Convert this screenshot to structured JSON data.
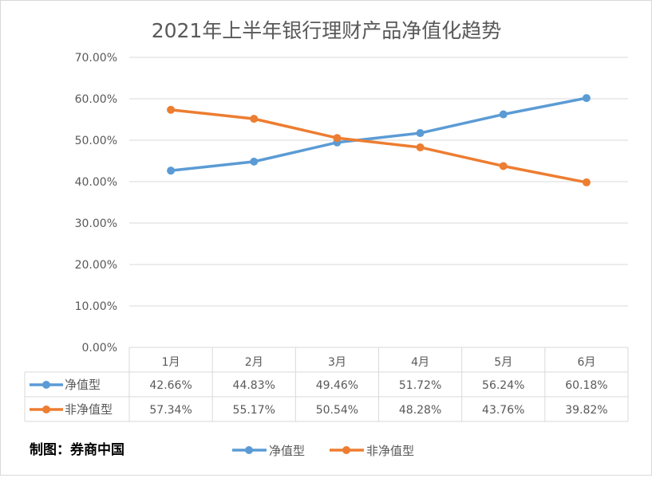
{
  "chart_data": {
    "type": "line",
    "title": "2021年上半年银行理财产品净值化趋势",
    "categories": [
      "1月",
      "2月",
      "3月",
      "4月",
      "5月",
      "6月"
    ],
    "series": [
      {
        "name": "净值型",
        "values": [
          42.66,
          44.83,
          49.46,
          51.72,
          56.24,
          60.18
        ],
        "labels": [
          "42.66%",
          "44.83%",
          "49.46%",
          "51.72%",
          "56.24%",
          "60.18%"
        ],
        "color": "#5b9bd5"
      },
      {
        "name": "非净值型",
        "values": [
          57.34,
          55.17,
          50.54,
          48.28,
          43.76,
          39.82
        ],
        "labels": [
          "57.34%",
          "55.17%",
          "50.54%",
          "48.28%",
          "43.76%",
          "39.82%"
        ],
        "color": "#ed7d31"
      }
    ],
    "ylim": [
      0,
      70
    ],
    "yticks": [
      "0.00%",
      "10.00%",
      "20.00%",
      "30.00%",
      "40.00%",
      "50.00%",
      "60.00%",
      "70.00%"
    ],
    "grid": true,
    "data_table": true,
    "legend": "bottom"
  },
  "source": "制图：券商中国"
}
